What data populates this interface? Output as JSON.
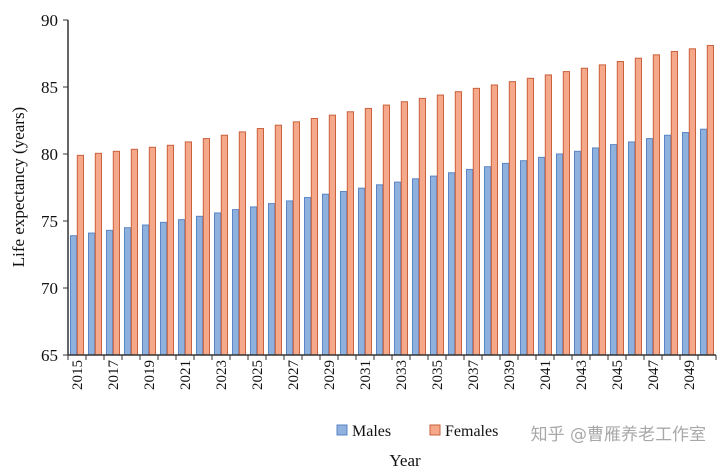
{
  "chart_data": {
    "type": "bar",
    "title": "",
    "xlabel": "Year",
    "ylabel": "Life expectancy (years)",
    "ylim": [
      65,
      90
    ],
    "yticks": [
      65,
      70,
      75,
      80,
      85,
      90
    ],
    "grid": false,
    "legend_position": "bottom",
    "categories": [
      2015,
      2016,
      2017,
      2018,
      2019,
      2020,
      2021,
      2022,
      2023,
      2024,
      2025,
      2026,
      2027,
      2028,
      2029,
      2030,
      2031,
      2032,
      2033,
      2034,
      2035,
      2036,
      2037,
      2038,
      2039,
      2040,
      2041,
      2042,
      2043,
      2044,
      2045,
      2046,
      2047,
      2048,
      2049,
      2050
    ],
    "tick_labels": [
      "2015",
      "2017",
      "2019",
      "2021",
      "2023",
      "2025",
      "2027",
      "2029",
      "2031",
      "2033",
      "2035",
      "2037",
      "2039",
      "2041",
      "2043",
      "2045",
      "2047",
      "2049"
    ],
    "series": [
      {
        "name": "Males",
        "color": "#8fb1de",
        "edge": "#5b86c5",
        "values": [
          73.9,
          74.1,
          74.3,
          74.5,
          74.7,
          74.9,
          75.1,
          75.35,
          75.6,
          75.85,
          76.05,
          76.3,
          76.5,
          76.75,
          77.0,
          77.2,
          77.45,
          77.7,
          77.9,
          78.15,
          78.35,
          78.6,
          78.85,
          79.05,
          79.3,
          79.5,
          79.75,
          80.0,
          80.2,
          80.45,
          80.7,
          80.9,
          81.15,
          81.4,
          81.6,
          81.85
        ]
      },
      {
        "name": "Females",
        "color": "#f6a88a",
        "edge": "#c9613d",
        "values": [
          79.9,
          80.05,
          80.2,
          80.35,
          80.5,
          80.65,
          80.9,
          81.15,
          81.4,
          81.65,
          81.9,
          82.15,
          82.4,
          82.65,
          82.9,
          83.15,
          83.4,
          83.65,
          83.9,
          84.15,
          84.4,
          84.65,
          84.9,
          85.15,
          85.4,
          85.65,
          85.9,
          86.15,
          86.4,
          86.65,
          86.9,
          87.15,
          87.4,
          87.65,
          87.85,
          88.1
        ]
      }
    ]
  },
  "watermark": "知乎 @曹雁养老工作室"
}
